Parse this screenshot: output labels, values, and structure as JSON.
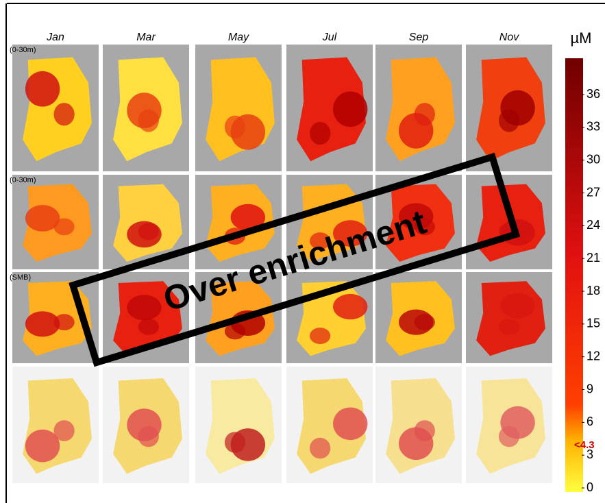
{
  "column_headers": [
    "Jan",
    "Mar",
    "May",
    "Jul",
    "Sep",
    "Nov"
  ],
  "row_labels": [
    "(0-30m)",
    "(0-30m)",
    "(SMB)"
  ],
  "colorbar": {
    "unit": "µM",
    "ticks": [
      0,
      3,
      6,
      9,
      12,
      15,
      18,
      21,
      24,
      27,
      30,
      33,
      36
    ],
    "threshold_label": "<4.3"
  },
  "annotation": "Over enrichment"
}
